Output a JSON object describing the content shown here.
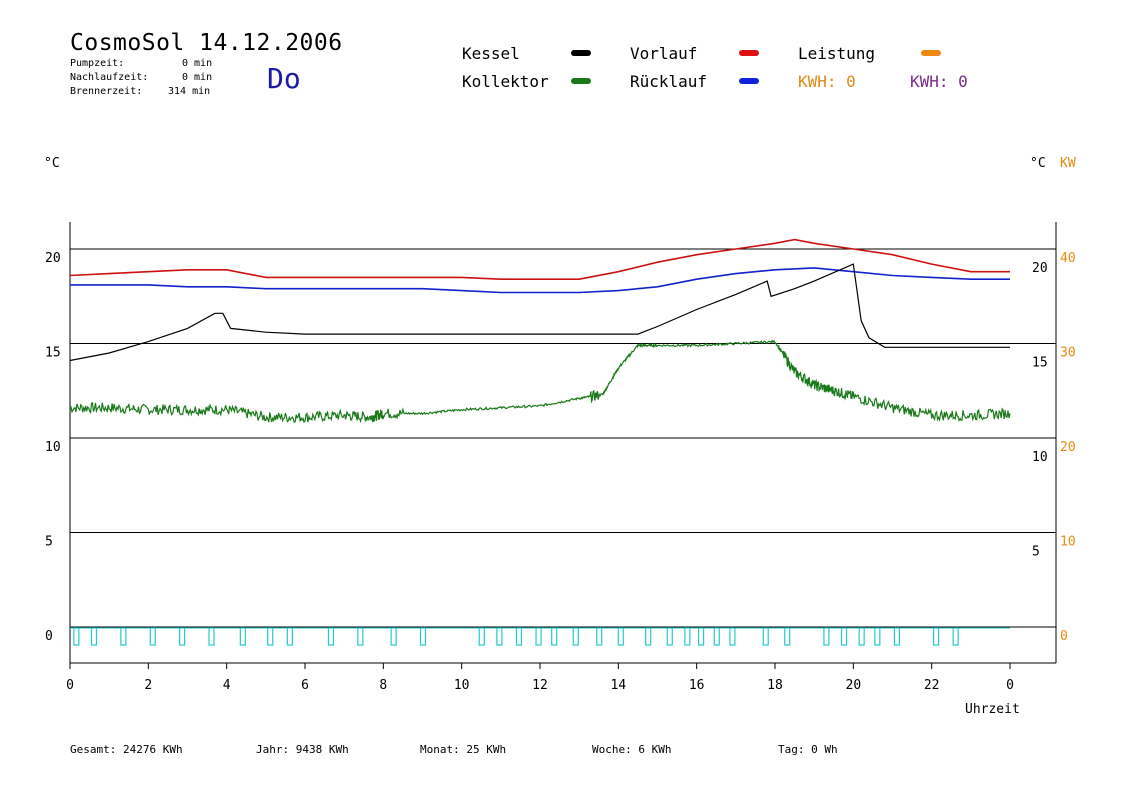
{
  "header": {
    "title": "CosmoSol 14.12.2006",
    "day": "Do",
    "pumpzeit_label": "Pumpzeit:",
    "pumpzeit_value": "0 min",
    "nachlaufzeit_label": "Nachlaufzeit:",
    "nachlaufzeit_value": "0 min",
    "brennerzeit_label": "Brennerzeit:",
    "brennerzeit_value": "314 min"
  },
  "legend": {
    "kessel": "Kessel",
    "kollektor": "Kollektor",
    "vorlauf": "Vorlauf",
    "ruecklauf": "Rücklauf",
    "leistung": "Leistung",
    "kwh1": "KWH: 0",
    "kwh2": "KWH: 0"
  },
  "units": {
    "left": "°C",
    "right_c": "°C",
    "right_kw": "KW",
    "xlabel": "Uhrzeit"
  },
  "footer": {
    "gesamt_label": "Gesamt:",
    "gesamt_value": "24276 KWh",
    "jahr_label": "Jahr:",
    "jahr_value": "9438 KWh",
    "monat_label": "Monat:",
    "monat_value": "25 KWh",
    "woche_label": "Woche:",
    "woche_value": "6 KWh",
    "tag_label": "Tag:",
    "tag_value": "0 Wh"
  },
  "colors": {
    "kessel": "#000000",
    "kollektor": "#1a7a1a",
    "vorlauf": "#cc1111",
    "ruecklauf": "#1122cc",
    "leistung": "#ee8811",
    "pump": "#22cccc",
    "kwh2": "#7a2a8a"
  },
  "chart_data": {
    "type": "line",
    "xlabel": "Uhrzeit",
    "xlim": [
      0,
      24
    ],
    "ylim": [
      -1.5,
      22.5
    ],
    "x_ticks": [
      "0",
      "2",
      "4",
      "6",
      "8",
      "10",
      "12",
      "14",
      "16",
      "18",
      "20",
      "22",
      "0"
    ],
    "y_ticks_left": [
      "0",
      "5",
      "10",
      "15",
      "20"
    ],
    "y_ticks_right_c": [
      "5",
      "10",
      "15",
      "20"
    ],
    "y_ticks_right_kw": [
      "0",
      "10",
      "20",
      "30",
      "40"
    ],
    "gridlines_y": [
      0,
      5,
      10,
      15,
      20
    ],
    "series": [
      {
        "name": "Vorlauf",
        "color": "#cc1111",
        "x": [
          0,
          1,
          2,
          3,
          4,
          5,
          6,
          7,
          8,
          9,
          10,
          11,
          12,
          13,
          14,
          15,
          16,
          17,
          18,
          18.5,
          19,
          20,
          21,
          22,
          23,
          24
        ],
        "y": [
          18.6,
          18.7,
          18.8,
          18.9,
          18.9,
          18.5,
          18.5,
          18.5,
          18.5,
          18.5,
          18.5,
          18.4,
          18.4,
          18.4,
          18.8,
          19.3,
          19.7,
          20.0,
          20.3,
          20.5,
          20.3,
          20.0,
          19.7,
          19.2,
          18.8,
          18.8
        ]
      },
      {
        "name": "Rücklauf",
        "color": "#1122cc",
        "x": [
          0,
          1,
          2,
          3,
          4,
          5,
          6,
          7,
          8,
          9,
          10,
          11,
          12,
          13,
          14,
          15,
          16,
          17,
          18,
          19,
          20,
          21,
          22,
          23,
          24
        ],
        "y": [
          18.1,
          18.1,
          18.1,
          18.0,
          18.0,
          17.9,
          17.9,
          17.9,
          17.9,
          17.9,
          17.8,
          17.7,
          17.7,
          17.7,
          17.8,
          18.0,
          18.4,
          18.7,
          18.9,
          19.0,
          18.8,
          18.6,
          18.5,
          18.4,
          18.4
        ]
      },
      {
        "name": "Kessel",
        "color": "#000000",
        "x": [
          0,
          1,
          2,
          3,
          3.7,
          3.9,
          4.1,
          5,
          6,
          7,
          8,
          9,
          10,
          11,
          12,
          13,
          14,
          14.5,
          15,
          16,
          17,
          17.8,
          17.9,
          18.5,
          19,
          20,
          20.2,
          20.4,
          20.8,
          21.5,
          22,
          23,
          24
        ],
        "y": [
          14.1,
          14.5,
          15.1,
          15.8,
          16.6,
          16.6,
          15.8,
          15.6,
          15.5,
          15.5,
          15.5,
          15.5,
          15.5,
          15.5,
          15.5,
          15.5,
          15.5,
          15.5,
          15.9,
          16.8,
          17.6,
          18.3,
          17.5,
          17.9,
          18.3,
          19.2,
          16.2,
          15.3,
          14.8,
          14.8,
          14.8,
          14.8,
          14.8
        ]
      },
      {
        "name": "Kollektor",
        "color": "#1a7a1a",
        "x": [
          0,
          1,
          2,
          3,
          4,
          5,
          6,
          7,
          7.7,
          8,
          9,
          10,
          11,
          12,
          13,
          13.6,
          14,
          14.5,
          15,
          16,
          17,
          18,
          18.5,
          19,
          19.5,
          20,
          21,
          22,
          23,
          24
        ],
        "y": [
          11.6,
          11.6,
          11.5,
          11.5,
          11.5,
          11.1,
          11.1,
          11.2,
          11.1,
          11.3,
          11.3,
          11.5,
          11.6,
          11.7,
          12.1,
          12.3,
          13.7,
          14.9,
          14.9,
          14.9,
          15.0,
          15.1,
          13.5,
          12.8,
          12.5,
          12.2,
          11.6,
          11.2,
          11.2,
          11.3
        ]
      }
    ]
  }
}
